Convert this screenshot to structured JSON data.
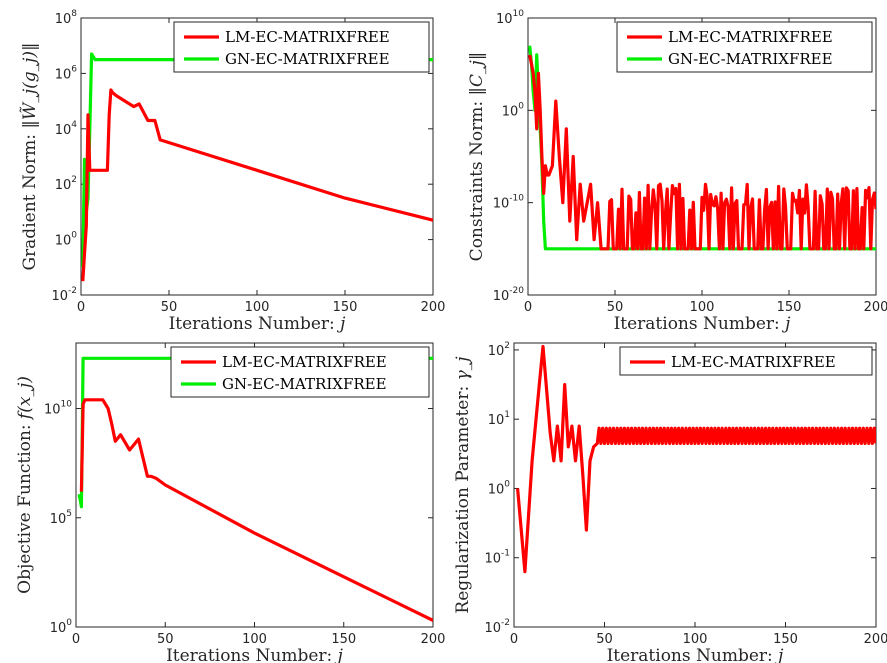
{
  "colors": {
    "lm": "#ff0000",
    "gn": "#00ee00"
  },
  "chart_data": [
    {
      "type": "line",
      "id": "p1",
      "xlabel": "Iterations Number:",
      "xlabel_math": "j",
      "ylabel": "Gradient Norm:",
      "ylabel_math": "‖W̃_j(g_j)‖",
      "xlim": [
        0,
        200
      ],
      "ylim_exp": [
        -2,
        8
      ],
      "yscale": "log",
      "xticks": [
        0,
        50,
        100,
        150,
        200
      ],
      "ytick_exps": [
        -2,
        0,
        2,
        4,
        6,
        8
      ],
      "legend": "top-right",
      "series": [
        {
          "name": "LM-EC-MATRIXFREE",
          "color_key": "lm",
          "x": [
            1,
            2,
            3,
            4,
            5,
            6,
            10,
            15,
            16,
            17,
            18,
            20,
            25,
            30,
            33,
            38,
            40,
            42,
            45,
            50,
            100,
            150,
            200
          ],
          "y_log10": [
            -1.5,
            -0.5,
            0.5,
            4.5,
            2.5,
            2.5,
            2.5,
            2.5,
            4.5,
            5.4,
            5.3,
            5.2,
            5.0,
            4.8,
            4.9,
            4.3,
            4.3,
            4.3,
            3.6,
            3.5,
            2.5,
            1.5,
            0.7
          ],
          "z": "front"
        },
        {
          "name": "GN-EC-MATRIXFREE",
          "color_key": "gn",
          "x": [
            1,
            2,
            3,
            4,
            5,
            6,
            8,
            10,
            15,
            100,
            200
          ],
          "y_log10": [
            -1.0,
            2.9,
            1.0,
            1.5,
            4.0,
            6.7,
            6.5,
            6.5,
            6.5,
            6.5,
            6.5
          ],
          "z": "back"
        }
      ]
    },
    {
      "type": "line",
      "id": "p2",
      "xlabel": "Iterations Number:",
      "xlabel_math": "j",
      "ylabel": "Constraints Norm:",
      "ylabel_math": "‖C_j‖",
      "xlim": [
        0,
        200
      ],
      "ylim_exp": [
        -20,
        10
      ],
      "yscale": "log",
      "xticks": [
        0,
        50,
        100,
        150,
        200
      ],
      "ytick_exps": [
        -20,
        -10,
        0,
        10
      ],
      "legend": "top-right",
      "series": [
        {
          "name": "LM-EC-MATRIXFREE",
          "color_key": "lm",
          "x": [
            1,
            2,
            3,
            4,
            5,
            6,
            7,
            8,
            9,
            10,
            11,
            12,
            14,
            16,
            18,
            20,
            22,
            24,
            26,
            28,
            30,
            32,
            34,
            36,
            38,
            40,
            42
          ],
          "y_log10": [
            6,
            5,
            4,
            2,
            -2,
            4,
            0,
            -5,
            -9,
            -6,
            -7,
            -7,
            -6,
            1,
            -5,
            -10,
            -2,
            -12,
            -5,
            -14,
            -8,
            -12,
            -10,
            -8,
            -14,
            -10,
            -15
          ],
          "noise": {
            "x_start": 43,
            "x_end": 200,
            "low": -15,
            "high": -8,
            "seed": 11
          },
          "z": "front"
        },
        {
          "name": "GN-EC-MATRIXFREE",
          "color_key": "gn",
          "x": [
            1,
            2,
            3,
            4,
            5,
            6,
            7,
            8,
            9,
            10,
            200
          ],
          "y_log10": [
            7,
            5,
            2,
            0,
            6,
            2,
            -2,
            -6,
            -12,
            -15,
            -15
          ],
          "z": "back"
        }
      ]
    },
    {
      "type": "line",
      "id": "p3",
      "xlabel": "Iterations Number:",
      "xlabel_math": "j",
      "ylabel": "Objective Function:",
      "ylabel_math": "f(x_j)",
      "xlim": [
        0,
        200
      ],
      "ylim_exp": [
        0,
        13
      ],
      "yscale": "log",
      "xticks": [
        0,
        50,
        100,
        150,
        200
      ],
      "ytick_exps": [
        0,
        5,
        10
      ],
      "legend": "top-right",
      "series": [
        {
          "name": "LM-EC-MATRIXFREE",
          "color_key": "lm",
          "x": [
            3,
            4,
            5,
            15,
            18,
            20,
            22,
            25,
            30,
            35,
            40,
            42,
            45,
            50,
            100,
            150,
            200
          ],
          "y_log10": [
            6.2,
            10.2,
            10.4,
            10.4,
            10.0,
            9.3,
            8.5,
            8.8,
            8.1,
            8.6,
            6.9,
            6.9,
            6.8,
            6.5,
            4.3,
            2.3,
            0.3
          ],
          "z": "front"
        },
        {
          "name": "GN-EC-MATRIXFREE",
          "color_key": "gn",
          "x": [
            1,
            2,
            3,
            4,
            5,
            6,
            200
          ],
          "y_log10": [
            6.0,
            6.0,
            5.5,
            12.3,
            12.3,
            12.3,
            12.3
          ],
          "z": "back"
        }
      ]
    },
    {
      "type": "line",
      "id": "p4",
      "xlabel": "Iterations Number:",
      "xlabel_math": "j",
      "ylabel": "Regularization Parameter:",
      "ylabel_math": "γ_j",
      "xlim": [
        0,
        200
      ],
      "ylim_exp": [
        -2,
        2.1
      ],
      "yscale": "log",
      "xticks": [
        0,
        50,
        100,
        150,
        200
      ],
      "ytick_exps": [
        -2,
        -1,
        0,
        1,
        2
      ],
      "legend": "top-right",
      "series": [
        {
          "name": "LM-EC-MATRIXFREE",
          "color_key": "lm",
          "x": [
            2,
            6,
            10,
            14,
            16,
            20,
            22,
            24,
            26,
            28,
            30,
            32,
            34,
            36,
            38,
            40,
            42,
            44,
            46
          ],
          "y_log10": [
            0,
            -1.2,
            0.4,
            1.5,
            2.05,
            0.8,
            0.4,
            0.9,
            0.4,
            1.5,
            0.6,
            0.9,
            0.4,
            0.9,
            0.2,
            -0.6,
            0.4,
            0.6,
            0.65
          ],
          "alternate": {
            "x_start": 46,
            "x_end": 200,
            "a": 0.65,
            "b": 0.87
          },
          "z": "front"
        }
      ]
    }
  ]
}
